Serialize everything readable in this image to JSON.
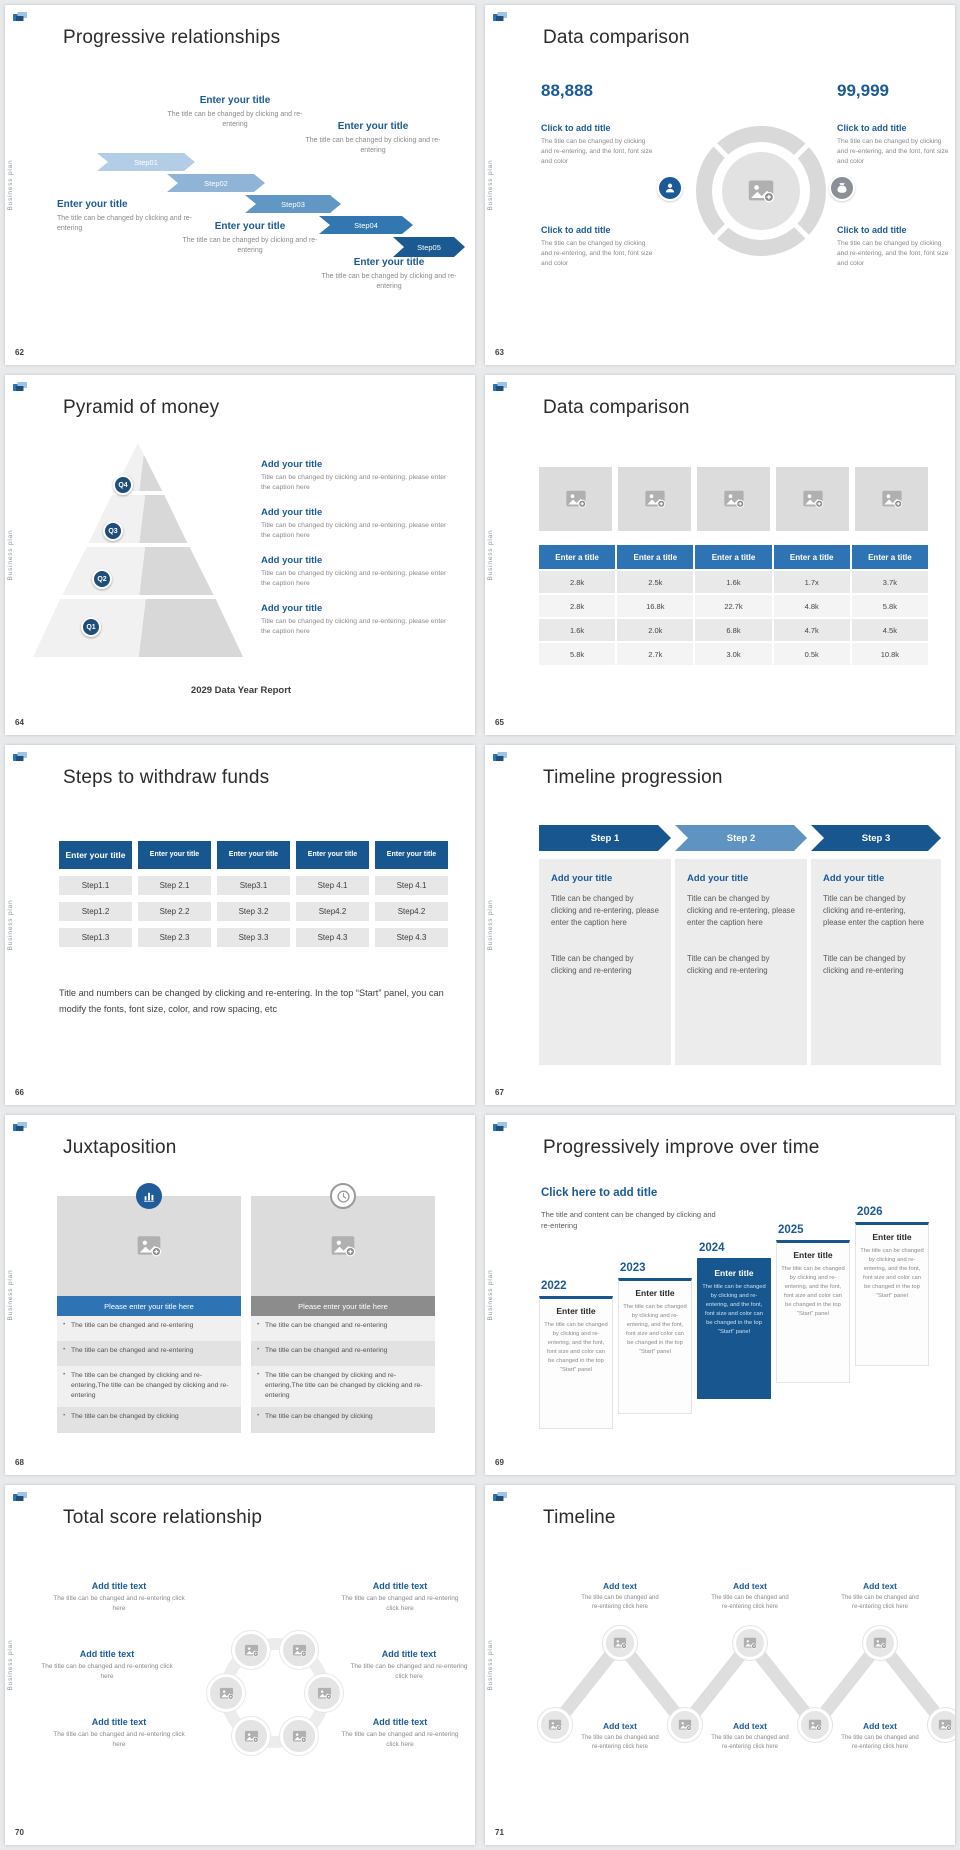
{
  "chrome": {
    "brand": "Business plan"
  },
  "icons": {
    "logo": "brand-logo",
    "pic": "image-placeholder-icon",
    "person": "customer-icon",
    "bag": "money-bag-icon",
    "chart": "bar-chart-icon",
    "clock": "clock-icon"
  },
  "s62": {
    "num": "62",
    "title": "Progressive relationships",
    "steps": [
      "Step01",
      "Step02",
      "Step03",
      "Step04",
      "Step05"
    ],
    "item_title": "Enter your title",
    "item_desc": "The title can be changed by clicking and re-entering"
  },
  "s63": {
    "num": "63",
    "title": "Data comparison",
    "value_left": "88,888",
    "value_right": "99,999",
    "item_title": "Click to add title",
    "item_desc": "The title can be changed by clicking and re-entering, and the font, font size and color"
  },
  "s64": {
    "num": "64",
    "title": "Pyramid of money",
    "levels": [
      "Q4",
      "Q3",
      "Q2",
      "Q1"
    ],
    "item_title": "Add your title",
    "item_desc": "Title can be changed by clicking and re-entering, please enter the caption here",
    "caption": "2029 Data Year Report"
  },
  "s65": {
    "num": "65",
    "title": "Data comparison",
    "col_header": "Enter a title",
    "rows": [
      [
        "2.8k",
        "2.5k",
        "1.6k",
        "1.7x",
        "3.7k"
      ],
      [
        "2.8k",
        "16.8k",
        "22.7k",
        "4.8k",
        "5.8k"
      ],
      [
        "1.6k",
        "2.0k",
        "6.8k",
        "4.7k",
        "4.5k"
      ],
      [
        "5.8k",
        "2.7k",
        "3.0k",
        "0.5k",
        "10.8k"
      ]
    ]
  },
  "s66": {
    "num": "66",
    "title": "Steps to withdraw funds",
    "col_header": "Enter your title",
    "cols": [
      [
        "Step1.1",
        "Step1.2",
        "Step1.3"
      ],
      [
        "Step 2.1",
        "Step 2.2",
        "Step 2.3"
      ],
      [
        "Step3.1",
        "Step 3.2",
        "Step 3.3"
      ],
      [
        "Step 4.1",
        "Step4.2",
        "Step 4.3"
      ],
      [
        "Step 4.1",
        "Step4.2",
        "Step 4.3"
      ]
    ],
    "note": "Title and numbers can be changed by clicking and re-entering. In the top “Start” panel, you can modify the fonts, font size, color, and row spacing, etc"
  },
  "s67": {
    "num": "67",
    "title": "Timeline progression",
    "steps": [
      "Step 1",
      "Step 2",
      "Step 3"
    ],
    "item_title": "Add your title",
    "item_desc1": "Title can be changed by clicking and re-entering, please enter the caption here",
    "item_desc2": "Title can be changed by clicking and re-entering"
  },
  "s68": {
    "num": "68",
    "title": "Juxtaposition",
    "bar_label": "Please enter your title here",
    "bullets": [
      "The title can be changed and re-entering",
      "The title can be changed and re-entering",
      "The title can be changed by clicking and re-entering,The title can be changed by clicking and re-entering",
      "The title can be changed by clicking"
    ]
  },
  "s69": {
    "num": "69",
    "title": "Progressively improve over time",
    "subtitle": "Click here to add title",
    "subtitle_desc": "The title and content can be changed by clicking and re-entering",
    "years": [
      "2022",
      "2023",
      "2024",
      "2025",
      "2026"
    ],
    "item_title": "Enter title",
    "item_desc": "The title can be changed by clicking and re-entering, and the font, font size and color can be changed in the top “Start” panel"
  },
  "s70": {
    "num": "70",
    "title": "Total score relationship",
    "item_title": "Add title text",
    "item_desc": "The title can be changed and re-entering click here"
  },
  "s71": {
    "num": "71",
    "title": "Timeline",
    "item_title": "Add text",
    "item_desc": "The title can be changed and re-entering click here"
  }
}
